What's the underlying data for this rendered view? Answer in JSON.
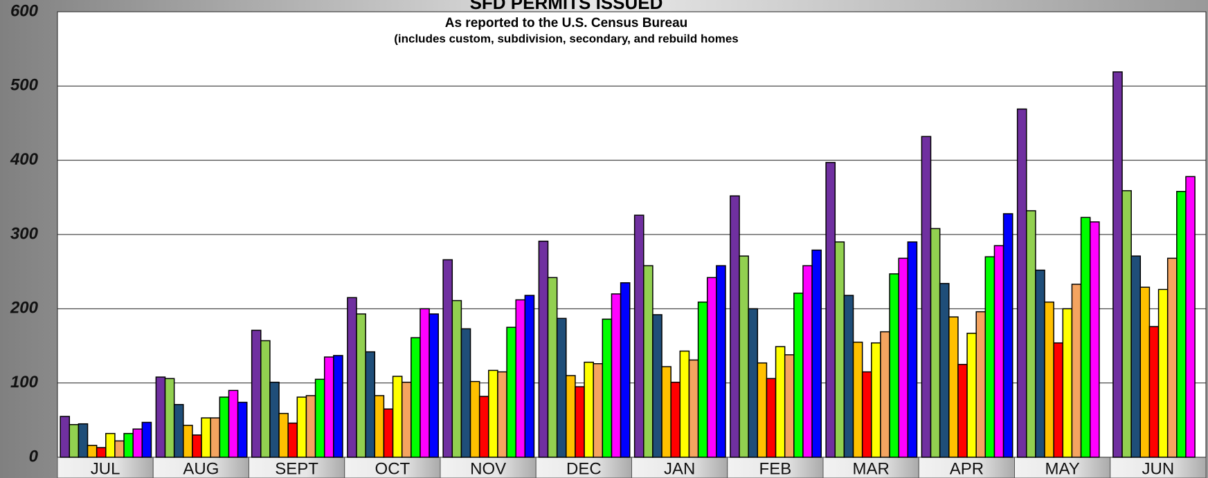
{
  "chart_data": {
    "type": "bar",
    "title": "SFD PERMITS ISSUED",
    "subtitle": [
      "As reported to the U.S. Census Bureau",
      "(includes custom, subdivision, secondary, and rebuild homes"
    ],
    "categories": [
      "JUL",
      "AUG",
      "SEPT",
      "OCT",
      "NOV",
      "DEC",
      "JAN",
      "FEB",
      "MAR",
      "APR",
      "MAY",
      "JUN"
    ],
    "series": [
      {
        "color": "#7030a0",
        "values": [
          55,
          108,
          171,
          215,
          266,
          291,
          326,
          352,
          397,
          432,
          469,
          519
        ]
      },
      {
        "color": "#92d050",
        "values": [
          44,
          106,
          157,
          193,
          211,
          242,
          258,
          271,
          290,
          308,
          332,
          359
        ]
      },
      {
        "color": "#1f4e79",
        "values": [
          45,
          71,
          101,
          142,
          173,
          187,
          192,
          200,
          218,
          234,
          252,
          271
        ]
      },
      {
        "color": "#ffc000",
        "values": [
          16,
          43,
          59,
          83,
          102,
          110,
          122,
          127,
          155,
          189,
          209,
          229
        ]
      },
      {
        "color": "#ff0000",
        "values": [
          13,
          30,
          46,
          65,
          82,
          95,
          101,
          106,
          115,
          125,
          154,
          176
        ]
      },
      {
        "color": "#ffff00",
        "values": [
          32,
          53,
          81,
          109,
          117,
          128,
          143,
          149,
          154,
          167,
          200,
          226
        ]
      },
      {
        "color": "#f4a460",
        "values": [
          22,
          53,
          83,
          101,
          115,
          126,
          131,
          138,
          169,
          196,
          233,
          268
        ]
      },
      {
        "color": "#00ff00",
        "values": [
          32,
          81,
          105,
          161,
          175,
          186,
          209,
          221,
          247,
          270,
          323,
          358
        ]
      },
      {
        "color": "#ff00ff",
        "values": [
          38,
          90,
          135,
          200,
          212,
          220,
          242,
          258,
          268,
          285,
          317,
          378
        ]
      },
      {
        "color": "#0000ff",
        "values": [
          47,
          74,
          137,
          193,
          218,
          235,
          258,
          279,
          290,
          328,
          null,
          null
        ]
      }
    ],
    "ylim": [
      0,
      600
    ],
    "yticks": [
      0,
      100,
      200,
      300,
      400,
      500,
      600
    ],
    "grid": true
  }
}
